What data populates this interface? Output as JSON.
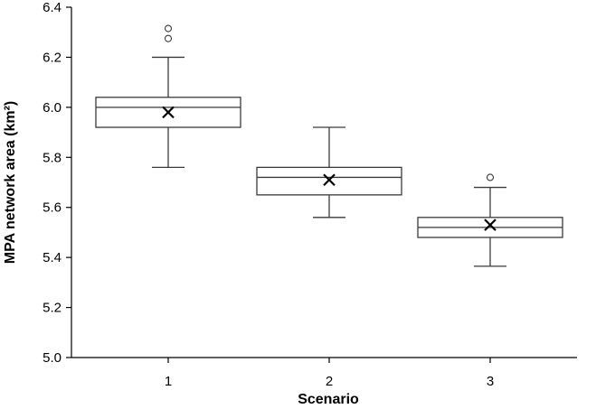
{
  "chart_data": {
    "type": "box",
    "xlabel": "Scenario",
    "ylabel": "MPA network area (km²)",
    "ylim": [
      5.0,
      6.4
    ],
    "yticks": [
      5.0,
      5.2,
      5.4,
      5.6,
      5.8,
      6.0,
      6.2,
      6.4
    ],
    "ytick_labels": [
      "5.0",
      "5.2",
      "5.4",
      "5.6",
      "5.8",
      "6.0",
      "6.2",
      "6.4"
    ],
    "categories": [
      "1",
      "2",
      "3"
    ],
    "grid": false,
    "boxes": [
      {
        "category": "1",
        "whisker_low": 5.76,
        "q1": 5.92,
        "median": 6.0,
        "q3": 6.04,
        "whisker_high": 6.2,
        "mean": 5.98,
        "outliers": [
          6.275,
          6.315
        ]
      },
      {
        "category": "2",
        "whisker_low": 5.56,
        "q1": 5.65,
        "median": 5.72,
        "q3": 5.76,
        "whisker_high": 5.92,
        "mean": 5.71,
        "outliers": []
      },
      {
        "category": "3",
        "whisker_low": 5.365,
        "q1": 5.48,
        "median": 5.52,
        "q3": 5.56,
        "whisker_high": 5.68,
        "mean": 5.53,
        "outliers": [
          5.72
        ]
      }
    ]
  }
}
